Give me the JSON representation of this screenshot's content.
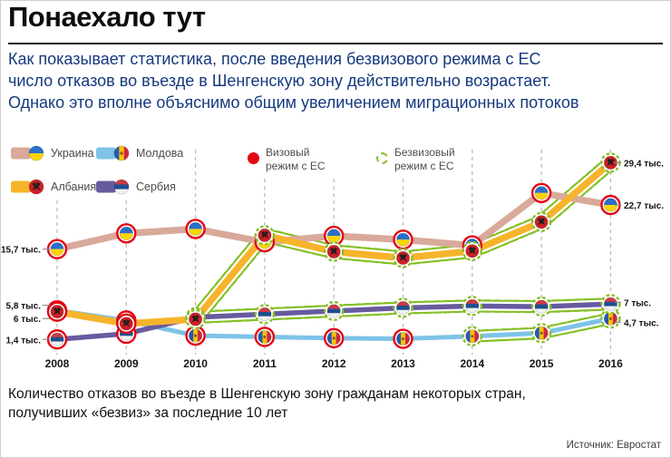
{
  "page": {
    "title": "Понаехало тут",
    "intro": "Как показывает статистика, после введения безвизового режима с ЕС\nчисло отказов во въезде в Шенгенскую зону действительно возрастает.\nОднако это вполне объяснимо общим увеличением миграционных потоков",
    "caption": "Количество отказов во въезде в Шенгенскую зону гражданам некоторых стран,\nполучивших «безвиз» за последние 10 лет",
    "source": "Источник: Евростат"
  },
  "legend": {
    "countries": [
      {
        "label": "Украина",
        "color": "#d9a99b",
        "flag": "ukraine"
      },
      {
        "label": "Албания",
        "color": "#f6b42c",
        "flag": "albania"
      },
      {
        "label": "Молдова",
        "color": "#7ec2e8",
        "flag": "moldova"
      },
      {
        "label": "Сербия",
        "color": "#675a9f",
        "flag": "serbia"
      }
    ],
    "regimes": [
      {
        "label": "Визовый режим с ЕС",
        "color": "#e30613",
        "style": "solid"
      },
      {
        "label": "Безвизовый режим с ЕС",
        "color": "#86bf26",
        "style": "dashed"
      }
    ]
  },
  "chart_data": {
    "type": "line",
    "title": "Понаехало тут",
    "unit": "тыс. отказов во въезде в Шенгенскую зону",
    "x": [
      2008,
      2009,
      2010,
      2011,
      2012,
      2013,
      2014,
      2015,
      2016
    ],
    "ylim": [
      0,
      31
    ],
    "grid": "vertical-dashed",
    "legend_position": "top-left",
    "series": [
      {
        "name": "Украина",
        "flag": "ukraine",
        "color": "#d9a99b",
        "width": 7.5,
        "values": [
          15.7,
          18.2,
          18.9,
          16.8,
          17.8,
          17.2,
          16.3,
          24.6,
          22.7
        ],
        "visa_free_from_index": null
      },
      {
        "name": "Молдова",
        "flag": "moldova",
        "color": "#7ec2e8",
        "width": 5,
        "values": [
          6.0,
          4.4,
          2.0,
          1.8,
          1.6,
          1.5,
          1.9,
          2.4,
          4.7
        ],
        "visa_free_from_index": 6
      },
      {
        "name": "Сербия",
        "flag": "serbia",
        "color": "#675a9f",
        "width": 5.5,
        "values": [
          1.4,
          2.3,
          4.9,
          5.4,
          5.9,
          6.4,
          6.7,
          6.6,
          7.0
        ],
        "visa_free_from_index": 2
      },
      {
        "name": "Албания",
        "flag": "albania",
        "color": "#f6b42c",
        "width": 7.5,
        "values": [
          5.8,
          3.9,
          4.6,
          17.9,
          15.3,
          14.3,
          15.4,
          20.0,
          29.4
        ],
        "visa_free_from_index": 2
      }
    ],
    "left_labels": [
      {
        "text": "15,7 тыс.",
        "value": 15.7,
        "dy": 0
      },
      {
        "text": "5,8 тыс.",
        "value": 5.8,
        "dy": -7
      },
      {
        "text": "6 тыс.",
        "value": 6.0,
        "dy": 9
      },
      {
        "text": "1,4 тыс.",
        "value": 1.4,
        "dy": 0
      }
    ],
    "right_labels": [
      {
        "text": "29,4 тыс.",
        "value": 29.4,
        "dy": 0
      },
      {
        "text": "22,7 тыс.",
        "value": 22.7,
        "dy": 0
      },
      {
        "text": "7 тыс.",
        "value": 7.0,
        "dy": -2
      },
      {
        "text": "4,7 тыс.",
        "value": 4.7,
        "dy": 4
      }
    ],
    "regime_colors": {
      "visa": "#e30613",
      "visa_free": "#86bf26"
    }
  }
}
